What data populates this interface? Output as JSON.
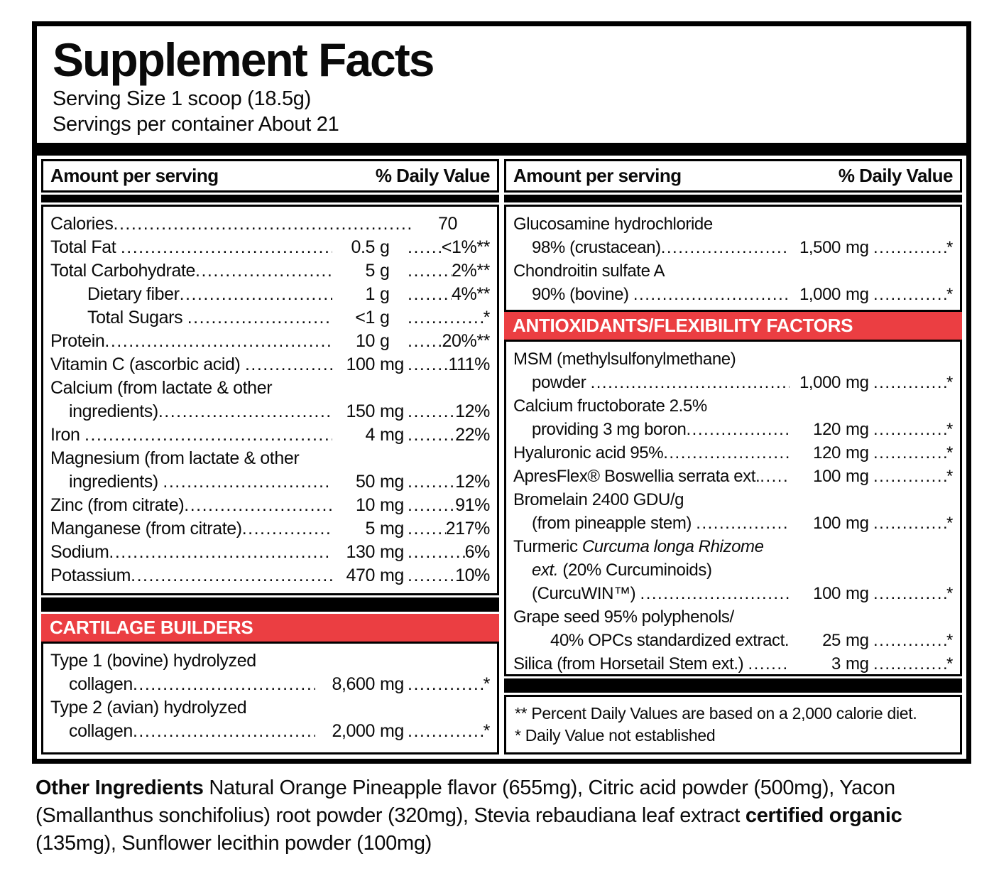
{
  "title": "Supplement Facts",
  "serving_size": "Serving Size 1 scoop (18.5g)",
  "servings_per_container": "Servings per container About 21",
  "columns_header": {
    "amount": "Amount per serving",
    "dv": "% Daily Value"
  },
  "left": {
    "main_rows": [
      {
        "label": "Calories",
        "num": "70",
        "unit": ""
      },
      {
        "label": "Total Fat ",
        "num": "0.5",
        "unit": "g",
        "dv": "<1%**"
      },
      {
        "label": "Total Carbohydrate",
        "num": "5",
        "unit": "g",
        "dv": "2%**"
      },
      {
        "label": "Dietary fiber",
        "ind": 2,
        "num": "1",
        "unit": "g",
        "dv": "4%**"
      },
      {
        "label": "Total Sugars ",
        "ind": 2,
        "num": "<1",
        "unit": "g",
        "dv": "*"
      },
      {
        "label": "Protein",
        "num": "10",
        "unit": "g",
        "dv": "20%**"
      },
      {
        "label": "Vitamin C (ascorbic acid) ",
        "num": "100",
        "unit": "mg",
        "dv": "111%"
      },
      {
        "pre": [
          {
            "s": [
              [
                "Calcium (from lactate & other",
                0
              ]
            ]
          }
        ],
        "label": "ingredients)",
        "ind": 1,
        "num": "150",
        "unit": "mg",
        "dv": "12%"
      },
      {
        "label": "Iron ",
        "num": "4",
        "unit": "mg",
        "dv": "22%"
      },
      {
        "pre": [
          {
            "s": [
              [
                "Magnesium (from lactate & other",
                0
              ]
            ]
          }
        ],
        "label": "ingredients) ",
        "ind": 1,
        "num": "50",
        "unit": "mg",
        "dv": "12%"
      },
      {
        "label": "Zinc (from citrate)",
        "num": "10",
        "unit": "mg",
        "dv": "91%"
      },
      {
        "label": "Manganese (from citrate)",
        "num": "5",
        "unit": "mg",
        "dv": "217%"
      },
      {
        "label": "Sodium",
        "num": "130",
        "unit": "mg",
        "dv": "6%"
      },
      {
        "label": "Potassium",
        "num": "470",
        "unit": "mg",
        "dv": "10%"
      }
    ],
    "banner": "CARTILAGE BUILDERS",
    "cartilage_rows": [
      {
        "pre": [
          {
            "s": [
              [
                "Type 1 (bovine) hydrolyzed",
                0
              ]
            ]
          }
        ],
        "label": "collagen",
        "ind": 1,
        "num": "8,600",
        "unit": "mg",
        "dv": "*"
      },
      {
        "pre": [
          {
            "s": [
              [
                "Type 2 (avian) hydrolyzed",
                0
              ]
            ]
          }
        ],
        "label": "collagen",
        "ind": 1,
        "num": "2,000",
        "unit": "mg ",
        "dv": "*"
      }
    ]
  },
  "right": {
    "top_rows": [
      {
        "pre": [
          {
            "s": [
              [
                "Glucosamine hydrochloride",
                0
              ]
            ]
          }
        ],
        "label": "98% (crustacean)",
        "ind": 1,
        "num": "1,500",
        "unit": "mg",
        "dv": "*"
      },
      {
        "pre": [
          {
            "s": [
              [
                "Chondroitin sulfate A",
                0
              ]
            ]
          }
        ],
        "label": "90% (bovine) ",
        "ind": 1,
        "num": "1,000",
        "unit": "mg",
        "dv": "*"
      }
    ],
    "banner": "ANTIOXIDANTS/FLEXIBILITY FACTORS",
    "bottom_rows": [
      {
        "pre": [
          {
            "s": [
              [
                "MSM (methylsulfonylmethane)",
                0
              ]
            ]
          }
        ],
        "label": "powder ",
        "ind": 1,
        "num": "1,000",
        "unit": "mg",
        "dv": "*"
      },
      {
        "pre": [
          {
            "s": [
              [
                "Calcium fructoborate 2.5%",
                0
              ]
            ]
          }
        ],
        "label": "providing 3 mg boron",
        "ind": 1,
        "num": "120",
        "unit": "mg",
        "dv": "*"
      },
      {
        "label": "Hyaluronic acid 95%",
        "num": "120",
        "unit": "mg",
        "dv": "*"
      },
      {
        "label": "ApresFlex® Boswellia serrata ext.",
        "num": "100",
        "unit": "mg",
        "dv": "*"
      },
      {
        "pre": [
          {
            "s": [
              [
                "Bromelain 2400 GDU/g",
                0
              ]
            ]
          }
        ],
        "label": "(from pineapple stem) ",
        "ind": 1,
        "num": "100",
        "unit": "mg",
        "dv": "*"
      },
      {
        "pre": [
          {
            "s": [
              [
                "Turmeric ",
                0
              ],
              [
                "Curcuma longa Rhizome",
                1
              ]
            ]
          },
          {
            "s": [
              [
                "ext.",
                1
              ],
              [
                " (20% Curcuminoids)",
                0
              ]
            ],
            "ind": 1
          }
        ],
        "label": "(CurcuWIN™) ",
        "ind": 1,
        "num": "100",
        "unit": "mg",
        "dv": "*"
      },
      {
        "pre": [
          {
            "s": [
              [
                "Grape seed 95% polyphenols/",
                0
              ]
            ]
          }
        ],
        "label": "40% OPCs standardized extract",
        "ind": 2,
        "num": "25",
        "unit": "mg",
        "dv": "*"
      },
      {
        "label": "Silica (from Horsetail Stem ext.) ",
        "num": "3",
        "unit": "mg",
        "dv": "*"
      }
    ],
    "footnotes": [
      "** Percent Daily Values are based on a 2,000 calorie diet.",
      "* Daily Value not established"
    ]
  },
  "other_ingredients": {
    "segments": [
      [
        "Other Ingredients ",
        1
      ],
      [
        "Natural Orange Pineapple flavor (655mg), Citric acid powder (500mg), Yacon (Smallanthus sonchifolius) root powder (320mg), Stevia rebaudiana leaf extract ",
        0
      ],
      [
        "certified organic",
        1
      ],
      [
        " (135mg), Sunflower lecithin powder (100mg)",
        0
      ]
    ]
  },
  "colors": {
    "banner_red": "#EB3E42",
    "bar_black": "#000000"
  }
}
